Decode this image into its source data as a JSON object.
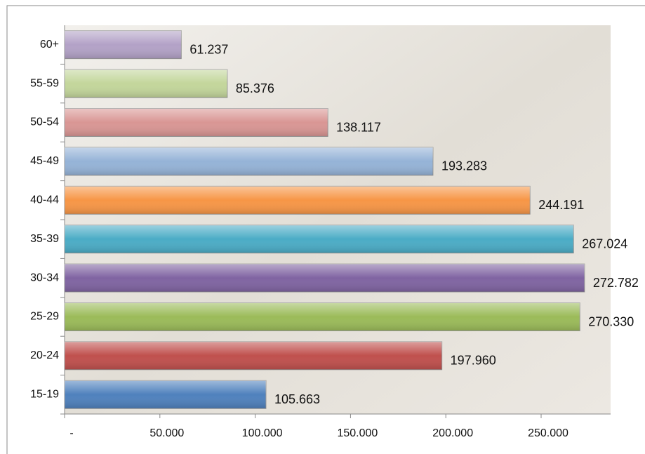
{
  "chart_data": {
    "type": "hbar",
    "categories": [
      "15-19",
      "20-24",
      "25-29",
      "30-34",
      "35-39",
      "40-44",
      "45-49",
      "50-54",
      "55-59",
      "60+"
    ],
    "values": [
      105663,
      197960,
      270330,
      272782,
      267024,
      244191,
      193283,
      138117,
      85376,
      61237
    ],
    "value_labels": [
      "105.663",
      "197.960",
      "270.330",
      "272.782",
      "267.024",
      "244.191",
      "193.283",
      "138.117",
      "85.376",
      "61.237"
    ],
    "colors": [
      "#4f81bd",
      "#c0504d",
      "#9bbb59",
      "#8064a2",
      "#4bacc6",
      "#f79646",
      "#95b3d7",
      "#d99694",
      "#c3d69b",
      "#b3a2c7"
    ],
    "xlim": [
      0,
      286450
    ],
    "xticks": [
      {
        "value": 0,
        "label": "-"
      },
      {
        "value": 50000,
        "label": "50.000"
      },
      {
        "value": 100000,
        "label": "100.000"
      },
      {
        "value": 150000,
        "label": "150.000"
      },
      {
        "value": 200000,
        "label": "200.000"
      },
      {
        "value": 250000,
        "label": "250.000"
      }
    ]
  }
}
